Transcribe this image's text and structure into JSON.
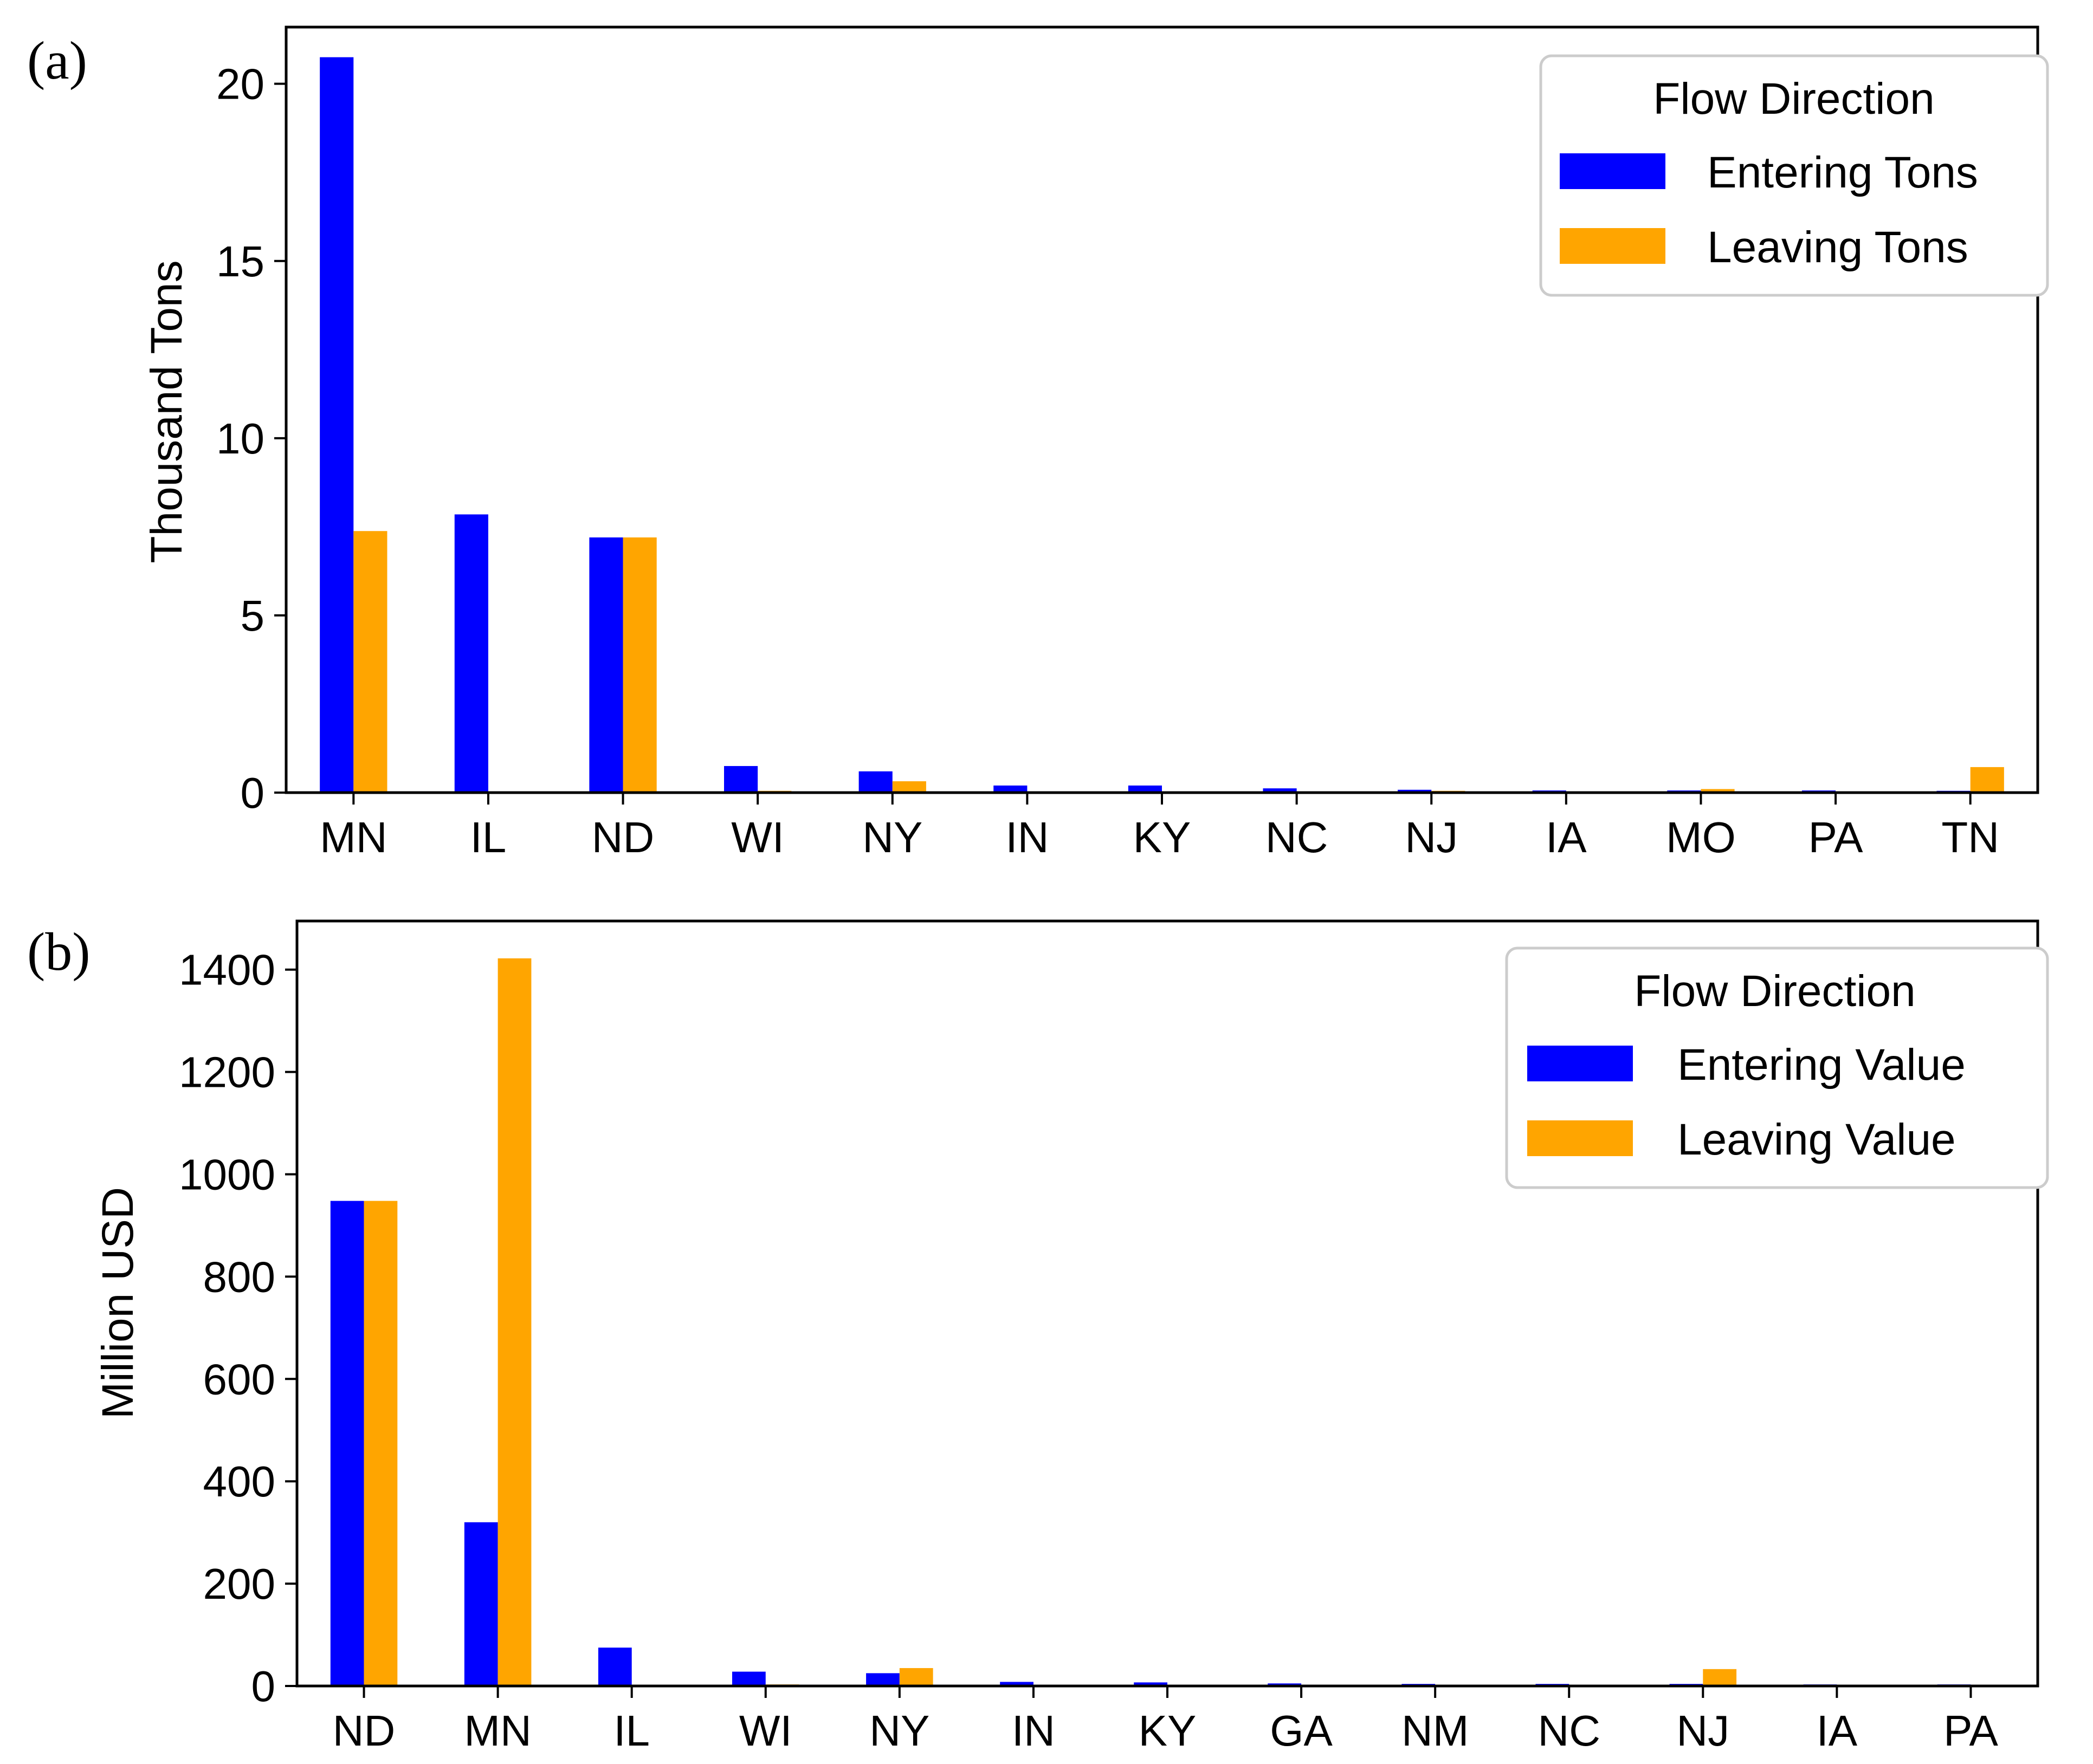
{
  "chart_data": [
    {
      "type": "bar",
      "panel_label": "(a)",
      "ylabel": "Thousand Tons",
      "xlabel": "",
      "ylim": [
        0,
        21.6
      ],
      "yticks": [
        0,
        5,
        10,
        15,
        20
      ],
      "categories": [
        "MN",
        "IL",
        "ND",
        "WI",
        "NY",
        "IN",
        "KY",
        "NC",
        "NJ",
        "IA",
        "MO",
        "PA",
        "TN"
      ],
      "series": [
        {
          "name": "Entering Tons",
          "color": "#0000ff",
          "values": [
            20.75,
            7.85,
            7.2,
            0.75,
            0.6,
            0.2,
            0.2,
            0.12,
            0.08,
            0.06,
            0.06,
            0.06,
            0.05
          ]
        },
        {
          "name": "Leaving Tons",
          "color": "#ffa500",
          "values": [
            7.38,
            0.0,
            7.2,
            0.05,
            0.32,
            0.0,
            0.0,
            0.0,
            0.05,
            0.0,
            0.1,
            0.0,
            0.72
          ]
        }
      ],
      "legend": {
        "title": "Flow Direction",
        "position": "top-right"
      },
      "grid": false
    },
    {
      "type": "bar",
      "panel_label": "(b)",
      "ylabel": "Million USD",
      "xlabel": "",
      "ylim": [
        0,
        1495
      ],
      "yticks": [
        0,
        200,
        400,
        600,
        800,
        1000,
        1200,
        1400
      ],
      "categories": [
        "ND",
        "MN",
        "IL",
        "WI",
        "NY",
        "IN",
        "KY",
        "GA",
        "NM",
        "NC",
        "NJ",
        "IA",
        "PA"
      ],
      "series": [
        {
          "name": "Entering Value",
          "color": "#0000ff",
          "values": [
            948,
            320,
            75,
            28,
            25,
            8,
            7,
            5,
            4,
            4,
            4,
            3,
            3
          ]
        },
        {
          "name": "Leaving Value",
          "color": "#ffa500",
          "values": [
            948,
            1422,
            0,
            3,
            35,
            0,
            0,
            0,
            0,
            0,
            33,
            0,
            0
          ]
        }
      ],
      "legend": {
        "title": "Flow Direction",
        "position": "top-right"
      },
      "grid": false
    }
  ]
}
